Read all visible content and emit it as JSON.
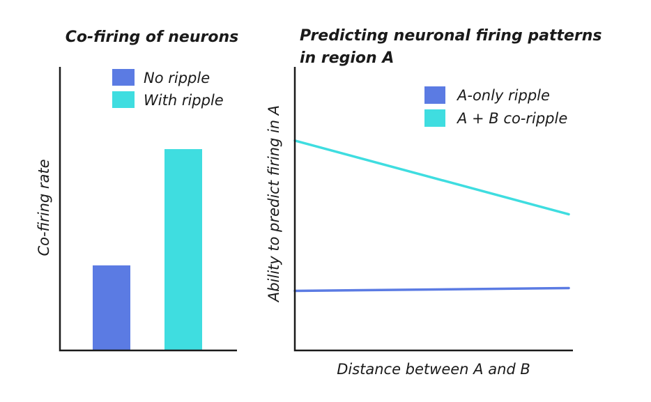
{
  "chart_data": [
    {
      "type": "bar",
      "title": "Co-firing of neurons",
      "xlabel": "",
      "ylabel": "Co-firing rate",
      "categories": [
        "No ripple",
        "With ripple"
      ],
      "values": [
        30,
        71
      ],
      "ylim": [
        0,
        100
      ],
      "colors": [
        "#5b7be3",
        "#3fdde0"
      ],
      "legend": {
        "placement": "top",
        "entries": [
          "No ripple",
          "With ripple"
        ]
      },
      "grid": false
    },
    {
      "type": "line",
      "title": "Predicting neuronal firing patterns in region A",
      "title_lines": [
        "Predicting neuronal firing patterns",
        "in region A"
      ],
      "xlabel": "Distance between A and B",
      "ylabel": "Ability to predict firing in A",
      "xlim": [
        0,
        1
      ],
      "ylim": [
        0,
        100
      ],
      "series": [
        {
          "name": "A-only ripple",
          "color": "#5b7be3",
          "x": [
            0,
            1
          ],
          "y": [
            21,
            22
          ]
        },
        {
          "name": "A + B co-ripple",
          "color": "#3fdde0",
          "x": [
            0,
            1
          ],
          "y": [
            74,
            48
          ]
        }
      ],
      "legend": {
        "placement": "top-right"
      },
      "grid": false
    }
  ]
}
